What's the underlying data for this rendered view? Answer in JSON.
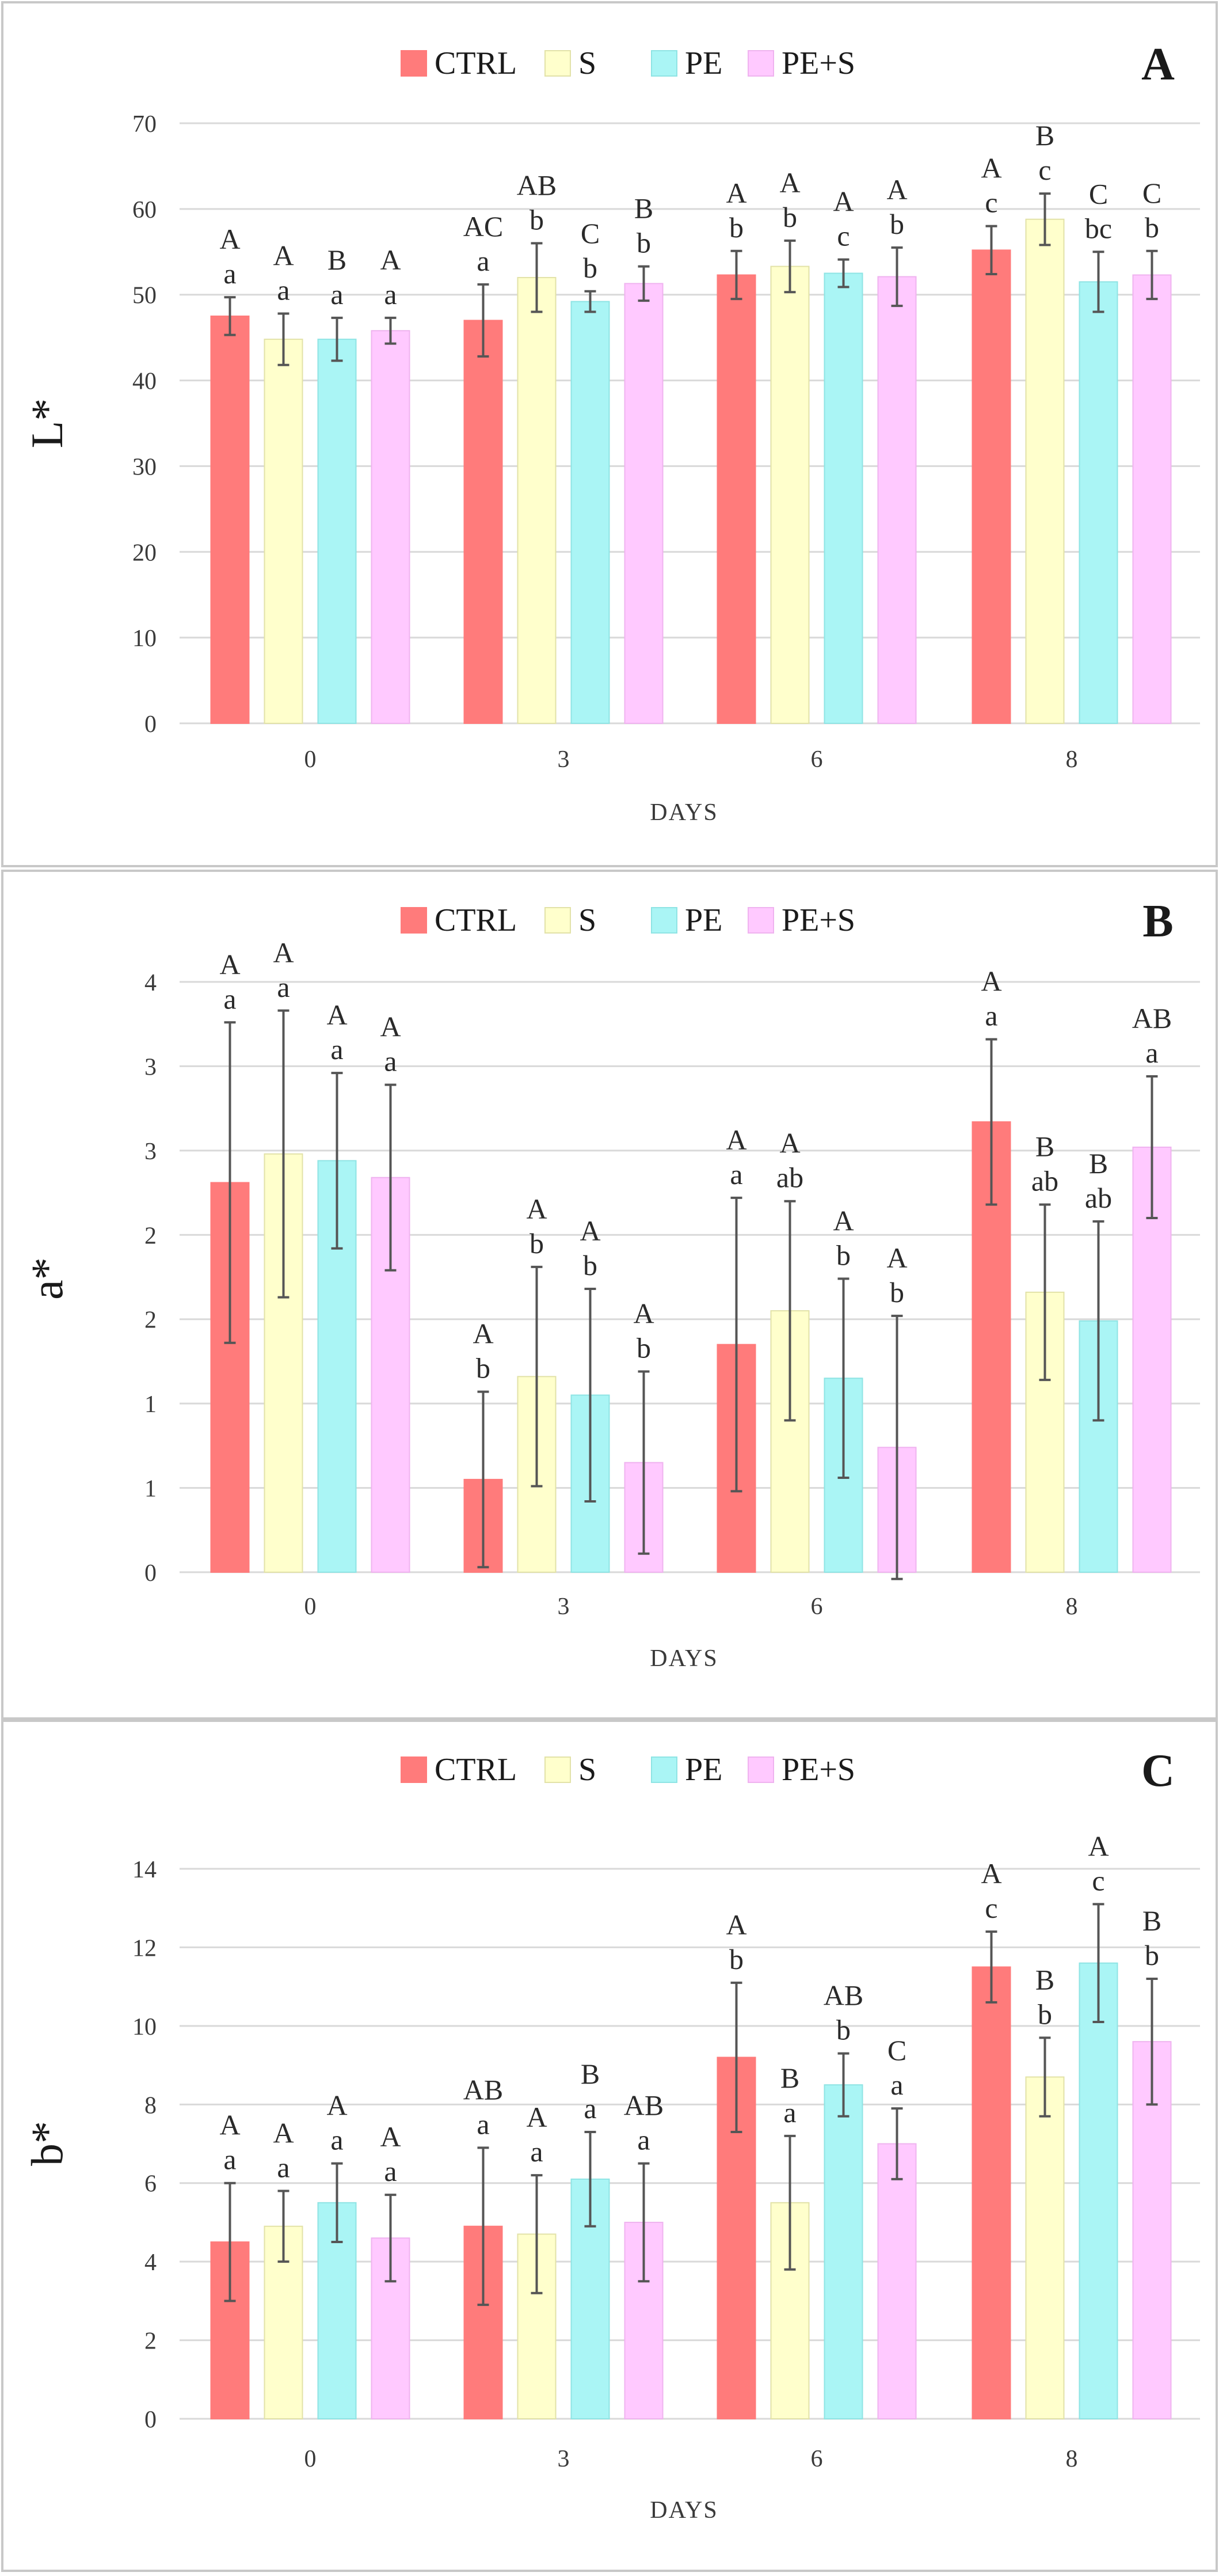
{
  "figure": {
    "colors": {
      "CTRL": "#ff7b7b",
      "S": "#ffffcc",
      "PE": "#aaf5f5",
      "PE+S": "#ffc9ff"
    },
    "series_names": [
      "CTRL",
      "S",
      "PE",
      "PE+S"
    ]
  },
  "chart_data": [
    {
      "type": "bar",
      "panel": "A",
      "ylabel": "L*",
      "xlabel": "DAYS",
      "categories": [
        "0",
        "3",
        "6",
        "8"
      ],
      "ylim": [
        0,
        70
      ],
      "yticks": [
        "0",
        "10",
        "20",
        "30",
        "40",
        "50",
        "60",
        "70"
      ],
      "ytick_values": [
        0,
        10,
        20,
        30,
        40,
        50,
        60,
        70
      ],
      "legend": [
        "CTRL",
        "S",
        "PE",
        "PE+S"
      ],
      "series": [
        {
          "name": "CTRL",
          "values": [
            47.5,
            47.0,
            52.3,
            55.2
          ],
          "errors": [
            2.2,
            4.2,
            2.8,
            2.8
          ],
          "upper": [
            "A",
            "AC",
            "A",
            "A"
          ],
          "lower": [
            "a",
            "a",
            "b",
            "c"
          ]
        },
        {
          "name": "S",
          "values": [
            44.8,
            52.0,
            53.3,
            58.8
          ],
          "errors": [
            3.0,
            4.0,
            3.0,
            3.0
          ],
          "upper": [
            "A",
            "AB",
            "A",
            "B"
          ],
          "lower": [
            "a",
            "b",
            "b",
            "c"
          ]
        },
        {
          "name": "PE",
          "values": [
            44.8,
            49.2,
            52.5,
            51.5
          ],
          "errors": [
            2.5,
            1.2,
            1.6,
            3.5
          ],
          "upper": [
            "B",
            "C",
            "A",
            "C"
          ],
          "lower": [
            "a",
            "b",
            "c",
            "bc"
          ]
        },
        {
          "name": "PE+S",
          "values": [
            45.8,
            51.3,
            52.1,
            52.3
          ],
          "errors": [
            1.5,
            2.0,
            3.4,
            2.8
          ],
          "upper": [
            "A",
            "B",
            "A",
            "C"
          ],
          "lower": [
            "a",
            "b",
            "b",
            "b"
          ]
        }
      ]
    },
    {
      "type": "bar",
      "panel": "B",
      "ylabel": "a*",
      "xlabel": "DAYS",
      "categories": [
        "0",
        "3",
        "6",
        "8"
      ],
      "ylim": [
        0,
        3.5
      ],
      "yticks": [
        "0",
        "1",
        "1",
        "2",
        "2",
        "3",
        "3",
        "4"
      ],
      "ytick_values": [
        0,
        0.5,
        1.0,
        1.5,
        2.0,
        2.5,
        3.0,
        3.5
      ],
      "legend": [
        "CTRL",
        "S",
        "PE",
        "PE+S"
      ],
      "series": [
        {
          "name": "CTRL",
          "values": [
            2.31,
            0.55,
            1.35,
            2.67
          ],
          "errors": [
            0.95,
            0.52,
            0.87,
            0.49
          ],
          "upper": [
            "A",
            "A",
            "A",
            "A"
          ],
          "lower": [
            "a",
            "b",
            "a",
            "a"
          ]
        },
        {
          "name": "S",
          "values": [
            2.48,
            1.16,
            1.55,
            1.66
          ],
          "errors": [
            0.85,
            0.65,
            0.65,
            0.52
          ],
          "upper": [
            "A",
            "A",
            "A",
            "B"
          ],
          "lower": [
            "a",
            "b",
            "ab",
            "ab"
          ]
        },
        {
          "name": "PE",
          "values": [
            2.44,
            1.05,
            1.15,
            1.49
          ],
          "errors": [
            0.52,
            0.63,
            0.59,
            0.59
          ],
          "upper": [
            "A",
            "A",
            "A",
            "B"
          ],
          "lower": [
            "a",
            "b",
            "b",
            "ab"
          ]
        },
        {
          "name": "PE+S",
          "values": [
            2.34,
            0.65,
            0.74,
            2.52
          ],
          "errors": [
            0.55,
            0.54,
            0.78,
            0.42
          ],
          "upper": [
            "A",
            "A",
            "A",
            "AB"
          ],
          "lower": [
            "a",
            "b",
            "b",
            "a"
          ]
        }
      ]
    },
    {
      "type": "bar",
      "panel": "C",
      "ylabel": "b*",
      "xlabel": "DAYS",
      "categories": [
        "0",
        "3",
        "6",
        "8"
      ],
      "ylim": [
        0,
        14
      ],
      "yticks": [
        "0",
        "2",
        "4",
        "6",
        "8",
        "10",
        "12",
        "14"
      ],
      "ytick_values": [
        0,
        2,
        4,
        6,
        8,
        10,
        12,
        14
      ],
      "legend": [
        "CTRL",
        "S",
        "PE",
        "PE+S"
      ],
      "series": [
        {
          "name": "CTRL",
          "values": [
            4.5,
            4.9,
            9.2,
            11.5
          ],
          "errors": [
            1.5,
            2.0,
            1.9,
            0.9
          ],
          "upper": [
            "A",
            "AB",
            "A",
            "A"
          ],
          "lower": [
            "a",
            "a",
            "b",
            "c"
          ]
        },
        {
          "name": "S",
          "values": [
            4.9,
            4.7,
            5.5,
            8.7
          ],
          "errors": [
            0.9,
            1.5,
            1.7,
            1.0
          ],
          "upper": [
            "A",
            "A",
            "B",
            "B"
          ],
          "lower": [
            "a",
            "a",
            "a",
            "b"
          ]
        },
        {
          "name": "PE",
          "values": [
            5.5,
            6.1,
            8.5,
            11.6
          ],
          "errors": [
            1.0,
            1.2,
            0.8,
            1.5
          ],
          "upper": [
            "A",
            "B",
            "AB",
            "A"
          ],
          "lower": [
            "a",
            "a",
            "b",
            "c"
          ]
        },
        {
          "name": "PE+S",
          "values": [
            4.6,
            5.0,
            7.0,
            9.6
          ],
          "errors": [
            1.1,
            1.5,
            0.9,
            1.6
          ],
          "upper": [
            "A",
            "AB",
            "C",
            "B"
          ],
          "lower": [
            "a",
            "a",
            "a",
            "b"
          ]
        }
      ]
    }
  ]
}
